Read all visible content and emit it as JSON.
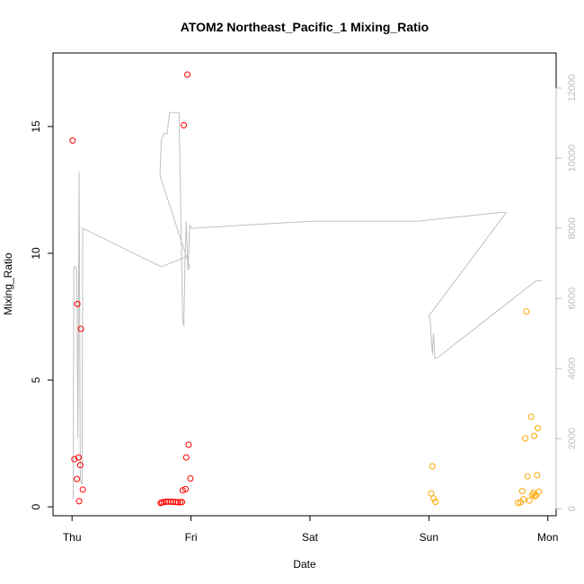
{
  "chart_data": {
    "type": "scatter",
    "title": "ATOM2 Northeast_Pacific_1 Mixing_Ratio",
    "xlabel": "Date",
    "ylabel": "Mixing_Ratio",
    "x_ticks": [
      {
        "label": "Thu",
        "value": 0
      },
      {
        "label": "Fri",
        "value": 1
      },
      {
        "label": "Sat",
        "value": 2
      },
      {
        "label": "Sun",
        "value": 3
      },
      {
        "label": "Mon",
        "value": 4
      }
    ],
    "xlim": [
      -0.16,
      4.07
    ],
    "ylim": [
      -0.35,
      17.9
    ],
    "y_ticks": [
      0,
      5,
      10,
      15
    ],
    "y2lim": [
      -200,
      13000
    ],
    "y2_ticks": [
      0,
      2000,
      4000,
      6000,
      8000,
      10000,
      12000
    ],
    "grid": false,
    "colors": {
      "red": "#ff0000",
      "orange": "#ffa500",
      "altitude_line": "#c0c0c0",
      "right_axis": "#bdbdbd"
    },
    "series": [
      {
        "color": "red",
        "points": [
          [
            0.005,
            14.45
          ],
          [
            0.02,
            1.88
          ],
          [
            0.04,
            1.1
          ],
          [
            0.045,
            8.0
          ],
          [
            0.055,
            1.95
          ],
          [
            0.06,
            0.22
          ],
          [
            0.07,
            1.65
          ],
          [
            0.075,
            7.02
          ],
          [
            0.09,
            0.68
          ],
          [
            0.745,
            0.15
          ],
          [
            0.755,
            0.17
          ],
          [
            0.77,
            0.19
          ],
          [
            0.79,
            0.2
          ],
          [
            0.81,
            0.21
          ],
          [
            0.83,
            0.2
          ],
          [
            0.85,
            0.2
          ],
          [
            0.87,
            0.19
          ],
          [
            0.89,
            0.18
          ],
          [
            0.91,
            0.18
          ],
          [
            0.925,
            0.19
          ],
          [
            0.93,
            0.65
          ],
          [
            0.94,
            15.05
          ],
          [
            0.955,
            0.7
          ],
          [
            0.96,
            1.95
          ],
          [
            0.97,
            17.05
          ],
          [
            0.98,
            2.45
          ],
          [
            0.995,
            1.12
          ]
        ]
      },
      {
        "color": "orange",
        "points": [
          [
            3.02,
            0.53
          ],
          [
            3.03,
            1.6
          ],
          [
            3.04,
            0.33
          ],
          [
            3.055,
            0.2
          ],
          [
            3.75,
            0.15
          ],
          [
            3.77,
            0.18
          ],
          [
            3.785,
            0.62
          ],
          [
            3.795,
            0.3
          ],
          [
            3.81,
            2.7
          ],
          [
            3.82,
            7.7
          ],
          [
            3.83,
            1.2
          ],
          [
            3.845,
            0.25
          ],
          [
            3.86,
            3.55
          ],
          [
            3.87,
            0.48
          ],
          [
            3.88,
            0.55
          ],
          [
            3.885,
            2.8
          ],
          [
            3.89,
            0.42
          ],
          [
            3.9,
            0.45
          ],
          [
            3.91,
            1.25
          ],
          [
            3.915,
            3.1
          ],
          [
            3.925,
            0.6
          ]
        ]
      }
    ],
    "altitude_line": {
      "color": "altitude_line",
      "points": [
        [
          0.0,
          300
        ],
        [
          0.01,
          300
        ],
        [
          0.015,
          6900
        ],
        [
          0.03,
          6900
        ],
        [
          0.04,
          6800
        ],
        [
          0.05,
          2000
        ],
        [
          0.06,
          9600
        ],
        [
          0.07,
          800
        ],
        [
          0.085,
          700
        ],
        [
          0.09,
          8000
        ],
        [
          0.75,
          6900
        ],
        [
          0.97,
          7200
        ],
        [
          0.975,
          6800
        ],
        [
          0.99,
          6900
        ],
        [
          0.74,
          9500
        ],
        [
          0.75,
          10500
        ],
        [
          0.77,
          10700
        ],
        [
          0.8,
          10700
        ],
        [
          0.82,
          11300
        ],
        [
          0.9,
          11300
        ],
        [
          0.93,
          5400
        ],
        [
          0.94,
          5200
        ],
        [
          0.95,
          7200
        ],
        [
          0.96,
          8200
        ],
        [
          0.975,
          6800
        ],
        [
          0.99,
          8100
        ],
        [
          1.0,
          8000
        ],
        [
          2.0,
          8200
        ],
        [
          2.9,
          8200
        ],
        [
          3.6,
          8450
        ],
        [
          3.65,
          8450
        ],
        [
          3.0,
          5500
        ],
        [
          3.01,
          5400
        ],
        [
          3.03,
          4400
        ],
        [
          3.04,
          5000
        ],
        [
          3.05,
          4300
        ],
        [
          3.07,
          4300
        ],
        [
          3.9,
          6500
        ],
        [
          3.95,
          6500
        ]
      ]
    }
  }
}
